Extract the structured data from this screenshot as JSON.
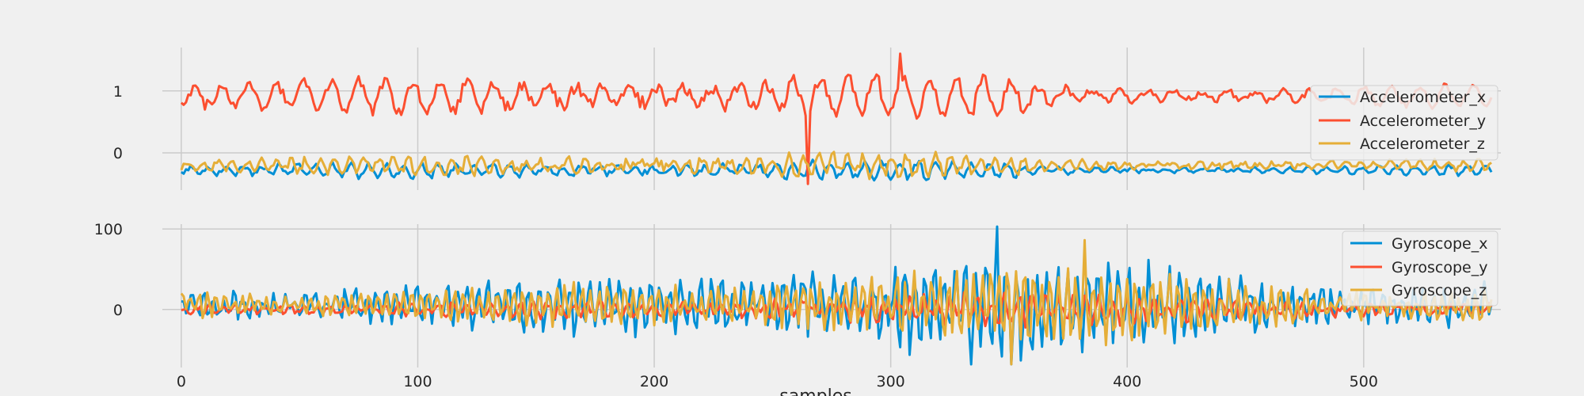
{
  "chart_data": [
    {
      "type": "line",
      "title": "",
      "xlabel": "",
      "ylabel": "",
      "xlim": [
        -8,
        558
      ],
      "ylim": [
        -0.6,
        1.7
      ],
      "xticks": [
        0,
        100,
        200,
        300,
        400,
        500
      ],
      "yticks": [
        0,
        1
      ],
      "grid": true,
      "legend": "right",
      "series": [
        {
          "name": "Accelerometer_x",
          "color": "#008fd5",
          "mean": -0.28,
          "amp": 0.09,
          "noise": 0.04,
          "period": 7.5,
          "n": 555
        },
        {
          "name": "Accelerometer_y",
          "color": "#fc4f30",
          "mean": 0.92,
          "amp": 0.22,
          "noise": 0.08,
          "period": 11.5,
          "n": 555,
          "spikes": [
            [
              10,
              0.7
            ],
            [
              265,
              -0.5
            ]
          ],
          "peak": 1.6
        },
        {
          "name": "Accelerometer_z",
          "color": "#e5ae38",
          "mean": -0.2,
          "amp": 0.1,
          "noise": 0.06,
          "period": 6.2,
          "n": 555
        }
      ]
    },
    {
      "type": "line",
      "title": "",
      "xlabel": "samples",
      "ylabel": "",
      "xlim": [
        -8,
        558
      ],
      "ylim": [
        -72,
        106
      ],
      "xticks": [
        0,
        100,
        200,
        300,
        400,
        500
      ],
      "yticks": [
        0,
        100
      ],
      "grid": true,
      "legend": "right",
      "series": [
        {
          "name": "Gyroscope_x",
          "color": "#008fd5",
          "mean": 5,
          "amp": 35,
          "noise": 15,
          "period": 4.3,
          "n": 555,
          "peak": 103,
          "trough": -68
        },
        {
          "name": "Gyroscope_y",
          "color": "#fc4f30",
          "mean": 0,
          "amp": 10,
          "noise": 6,
          "period": 5.7,
          "n": 555
        },
        {
          "name": "Gyroscope_z",
          "color": "#e5ae38",
          "mean": 5,
          "amp": 28,
          "noise": 10,
          "period": 3.6,
          "n": 555,
          "peak": 86,
          "trough": -68
        }
      ]
    }
  ]
}
